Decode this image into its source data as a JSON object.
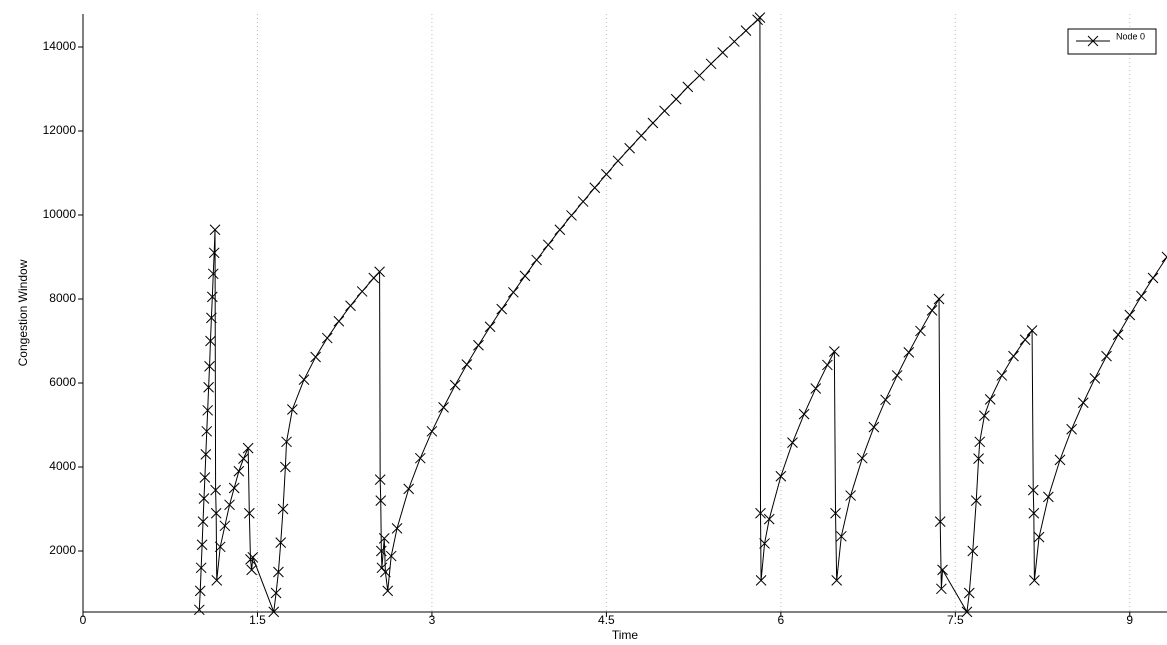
{
  "chart_data": {
    "type": "line",
    "x_label": "Time",
    "y_label": "Congestion Window",
    "x": [
      1.0,
      1.008,
      1.016,
      1.024,
      1.032,
      1.04,
      1.048,
      1.056,
      1.064,
      1.072,
      1.08,
      1.088,
      1.096,
      1.104,
      1.112,
      1.12,
      1.128,
      1.135,
      1.14,
      1.145,
      1.15,
      1.18,
      1.22,
      1.26,
      1.3,
      1.34,
      1.38,
      1.42,
      1.43,
      1.44,
      1.45,
      1.46,
      1.64,
      1.66,
      1.68,
      1.7,
      1.72,
      1.74,
      1.75,
      1.8,
      1.9,
      2.0,
      2.1,
      2.2,
      2.3,
      2.4,
      2.5,
      2.55,
      2.555,
      2.56,
      2.565,
      2.57,
      2.59,
      2.6,
      2.62,
      2.65,
      2.7,
      2.8,
      2.9,
      3.0,
      3.1,
      3.2,
      3.3,
      3.4,
      3.5,
      3.6,
      3.7,
      3.8,
      3.9,
      4.0,
      4.1,
      4.2,
      4.3,
      4.4,
      4.5,
      4.6,
      4.7,
      4.8,
      4.9,
      5.0,
      5.1,
      5.2,
      5.3,
      5.4,
      5.5,
      5.6,
      5.7,
      5.8,
      5.82,
      5.825,
      5.83,
      5.86,
      5.9,
      6.0,
      6.1,
      6.2,
      6.3,
      6.4,
      6.46,
      6.47,
      6.48,
      6.52,
      6.6,
      6.7,
      6.8,
      6.9,
      7.0,
      7.1,
      7.2,
      7.3,
      7.36,
      7.37,
      7.38,
      7.39,
      7.6,
      7.62,
      7.65,
      7.68,
      7.7,
      7.71,
      7.75,
      7.8,
      7.9,
      8.0,
      8.1,
      8.16,
      8.17,
      8.175,
      8.18,
      8.22,
      8.3,
      8.4,
      8.5,
      8.6,
      8.7,
      8.8,
      8.9,
      9.0,
      9.1,
      9.2,
      9.32
    ],
    "series": [
      {
        "name": "Node 0",
        "color": "#000000",
        "values": [
          600,
          1050,
          1600,
          2150,
          2700,
          3250,
          3750,
          4300,
          4850,
          5350,
          5900,
          6400,
          7000,
          7550,
          8050,
          8600,
          9100,
          9650,
          3450,
          2900,
          1300,
          2100,
          2600,
          3100,
          3500,
          3900,
          4200,
          4450,
          2900,
          1800,
          1550,
          1850,
          550,
          1000,
          1500,
          2200,
          3000,
          4000,
          4600,
          5370,
          6080,
          6620,
          7070,
          7470,
          7840,
          8180,
          8500,
          8650,
          3700,
          3200,
          2000,
          1600,
          2300,
          1500,
          1050,
          1880,
          2540,
          3480,
          4210,
          4850,
          5420,
          5950,
          6440,
          6900,
          7340,
          7760,
          8160,
          8550,
          8930,
          9290,
          9650,
          9990,
          10320,
          10650,
          10970,
          11290,
          11590,
          11890,
          12190,
          12480,
          12760,
          13050,
          13320,
          13600,
          13870,
          14130,
          14390,
          14650,
          14700,
          2900,
          1300,
          2180,
          2760,
          3780,
          4580,
          5260,
          5870,
          6430,
          6750,
          2900,
          1300,
          2350,
          3320,
          4210,
          4950,
          5600,
          6180,
          6730,
          7240,
          7730,
          8000,
          2700,
          1100,
          1550,
          550,
          1000,
          2000,
          3200,
          4200,
          4600,
          5220,
          5610,
          6180,
          6640,
          7030,
          7250,
          3450,
          2900,
          1300,
          2330,
          3290,
          4170,
          4900,
          5530,
          6110,
          6640,
          7150,
          7620,
          8070,
          8500,
          9000
        ]
      }
    ],
    "xlim": [
      0,
      9.32
    ],
    "ylim": [
      548,
      14786
    ],
    "xticks": [
      0,
      1.5,
      3,
      4.5,
      6,
      7.5,
      9
    ],
    "yticks": [
      2000,
      4000,
      6000,
      8000,
      10000,
      12000,
      14000
    ],
    "grid": true,
    "legend": "top-right"
  }
}
